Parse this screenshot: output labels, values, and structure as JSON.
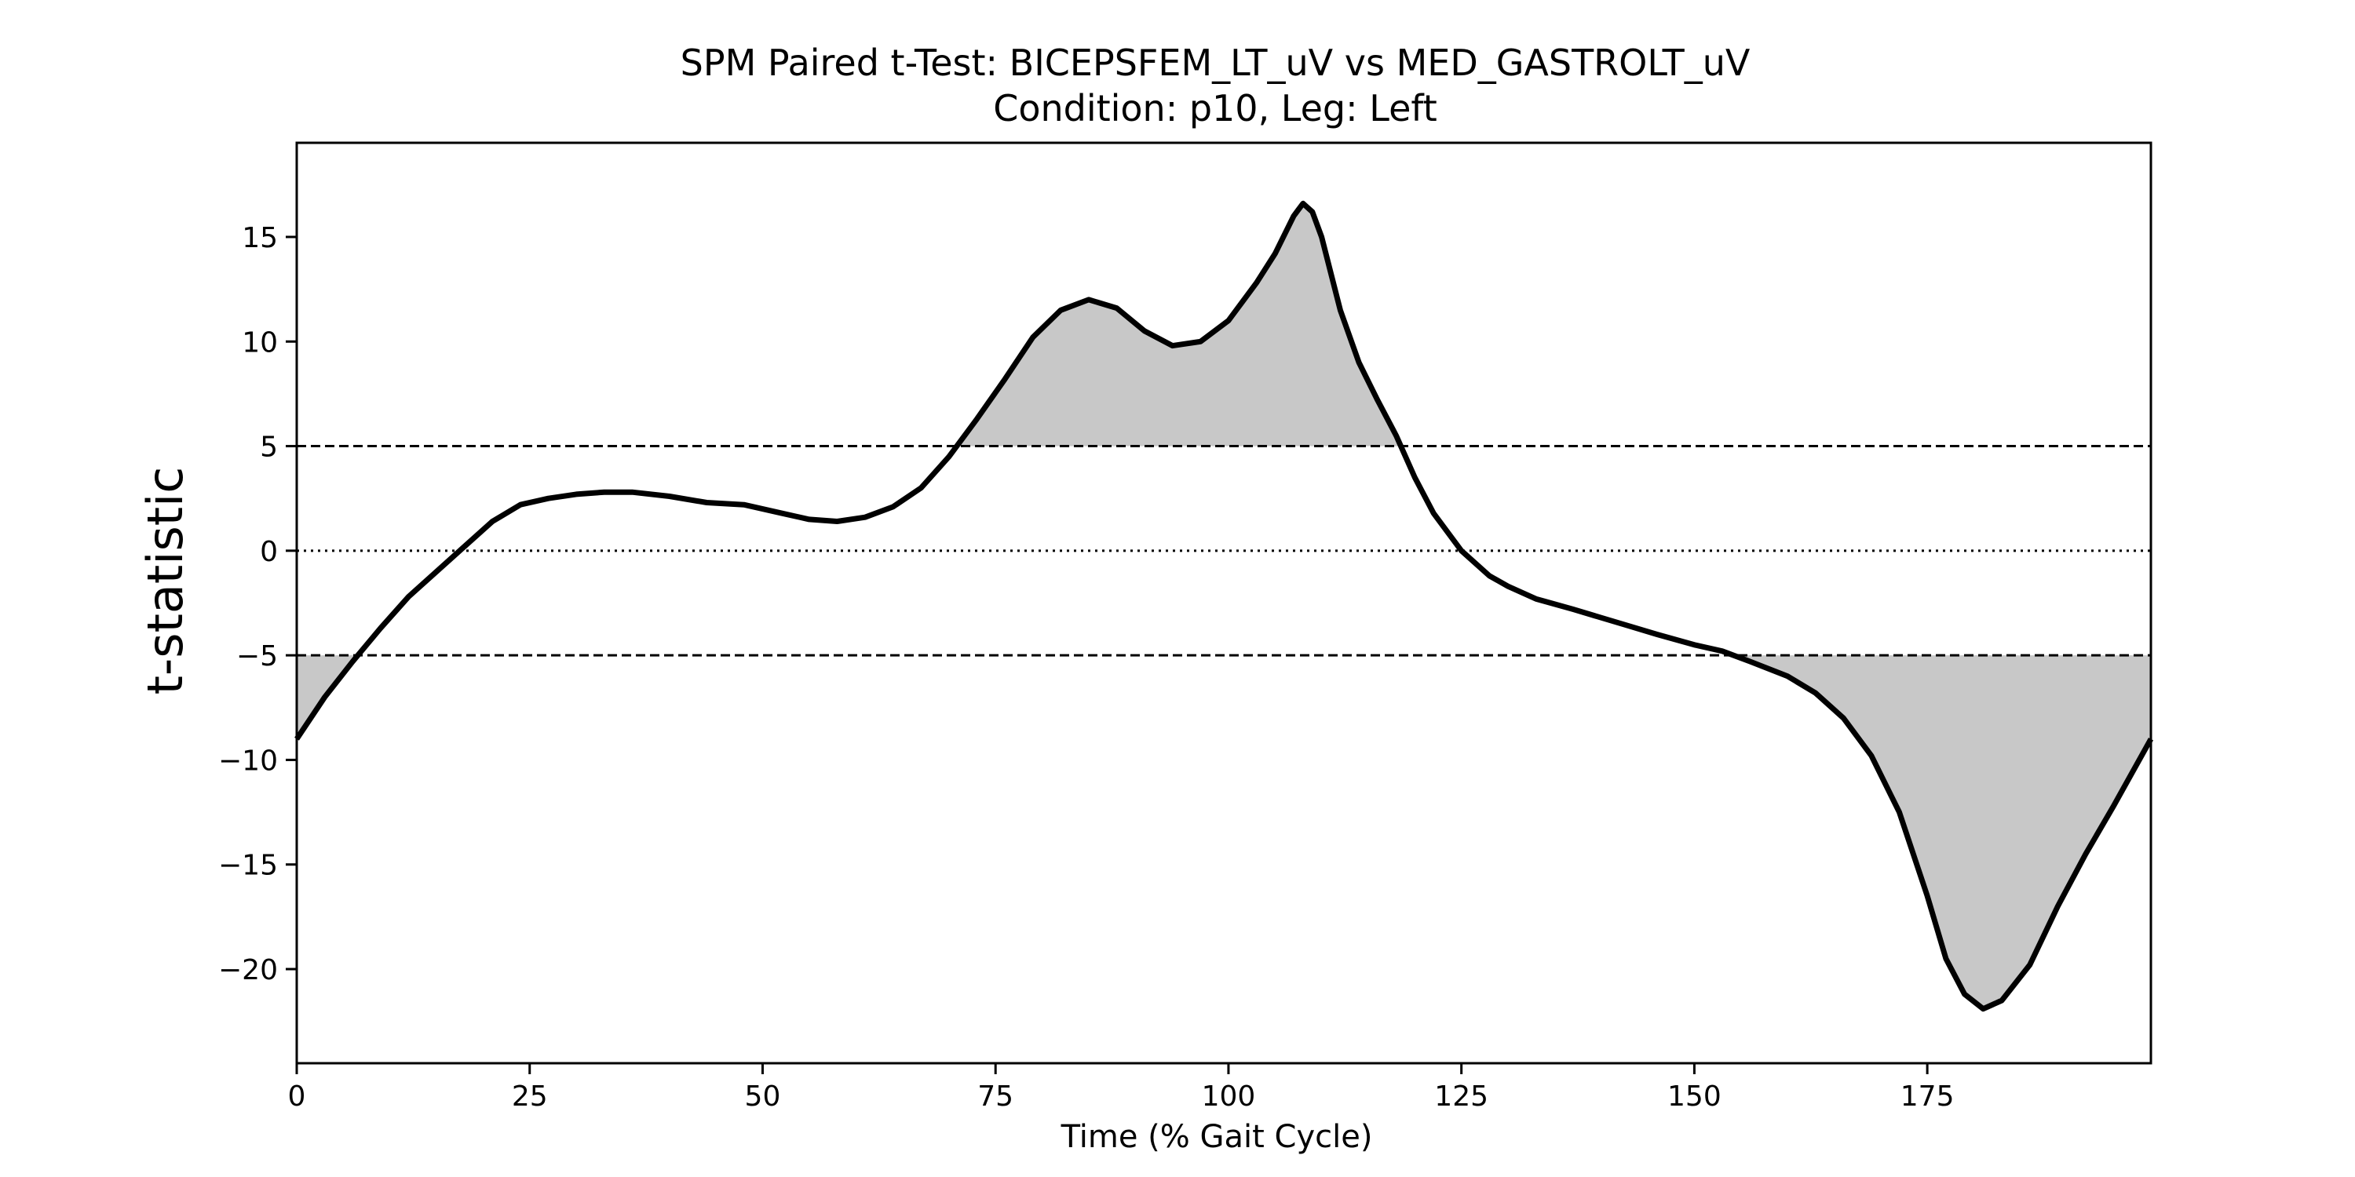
{
  "chart_data": {
    "type": "line",
    "title": "SPM Paired t-Test: BICEPSFEM_LT_uV vs MED_GASTROLT_uV",
    "subtitle": "Condition: p10, Leg: Left",
    "xlabel": "Time (% Gait Cycle)",
    "ylabel": "t-statistic",
    "xlim": [
      0,
      199
    ],
    "ylim": [
      -24.5,
      19.5
    ],
    "xticks": [
      0,
      25,
      50,
      75,
      100,
      125,
      150,
      175
    ],
    "yticks": [
      15,
      10,
      5,
      0,
      -5,
      -10,
      -15,
      -20
    ],
    "threshold_upper": 5.0,
    "threshold_lower": -5.0,
    "zero_line": 0,
    "fill_color": "#c8c8c8",
    "line_color": "#000000",
    "grid": false,
    "series": [
      {
        "x": [
          0,
          3,
          6,
          9,
          12,
          15,
          18,
          21,
          24,
          27,
          30,
          33,
          36,
          40,
          44,
          48,
          52,
          55,
          58,
          61,
          64,
          67,
          70,
          73,
          76,
          79,
          82,
          85,
          88,
          91,
          94,
          97,
          100,
          103,
          105,
          107,
          108,
          109,
          110,
          112,
          114,
          116,
          118,
          120,
          122,
          125,
          128,
          130,
          133,
          137,
          140,
          143,
          146,
          150,
          153,
          156,
          160,
          163,
          166,
          169,
          172,
          175,
          177,
          179,
          181,
          183,
          186,
          189,
          192,
          195,
          199
        ],
        "y": [
          -9.0,
          -7.0,
          -5.3,
          -3.7,
          -2.2,
          -1.0,
          0.2,
          1.4,
          2.2,
          2.5,
          2.7,
          2.8,
          2.8,
          2.6,
          2.3,
          2.2,
          1.8,
          1.5,
          1.4,
          1.6,
          2.1,
          3.0,
          4.5,
          6.3,
          8.2,
          10.2,
          11.5,
          12.0,
          11.6,
          10.5,
          9.8,
          10.0,
          11.0,
          12.8,
          14.2,
          16.0,
          16.6,
          16.2,
          15.0,
          11.5,
          9.0,
          7.2,
          5.5,
          3.5,
          1.8,
          0.0,
          -1.2,
          -1.7,
          -2.3,
          -2.8,
          -3.2,
          -3.6,
          -4.0,
          -4.5,
          -4.8,
          -5.3,
          -6.0,
          -6.8,
          -8.0,
          -9.8,
          -12.5,
          -16.5,
          -19.5,
          -21.2,
          -21.9,
          -21.5,
          -19.8,
          -17.0,
          -14.5,
          -12.2,
          -9.0
        ]
      }
    ]
  }
}
